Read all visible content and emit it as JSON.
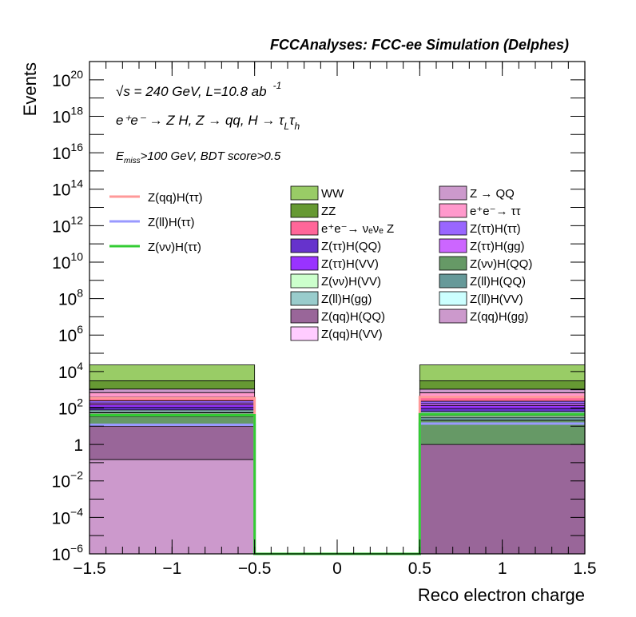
{
  "chart_data": {
    "type": "bar",
    "title": "FCCAnalyses: FCC-ee Simulation (Delphes)",
    "xlabel": "Reco electron charge",
    "ylabel": "Events",
    "xlim": [
      -1.5,
      1.5
    ],
    "ylim_log10": [
      -6,
      21
    ],
    "log_y": true,
    "grid": false,
    "x_ticks": [
      -1.5,
      -1,
      -0.5,
      0,
      0.5,
      1,
      1.5
    ],
    "x_tick_labels": [
      "−1.5",
      "−1",
      "−0.5",
      "0",
      "0.5",
      "1",
      "1.5"
    ],
    "y_tick_labels": [
      {
        "exp": -6,
        "text": "10",
        "sup": "−6"
      },
      {
        "exp": -4,
        "text": "10",
        "sup": "−4"
      },
      {
        "exp": -2,
        "text": "10",
        "sup": "−2"
      },
      {
        "exp": 0,
        "text": "1",
        "sup": ""
      },
      {
        "exp": 2,
        "text": "10",
        "sup": "2"
      },
      {
        "exp": 4,
        "text": "10",
        "sup": "4"
      },
      {
        "exp": 6,
        "text": "10",
        "sup": "6"
      },
      {
        "exp": 8,
        "text": "10",
        "sup": "8"
      },
      {
        "exp": 10,
        "text": "10",
        "sup": "10"
      },
      {
        "exp": 12,
        "text": "10",
        "sup": "12"
      },
      {
        "exp": 14,
        "text": "10",
        "sup": "14"
      },
      {
        "exp": 16,
        "text": "10",
        "sup": "16"
      },
      {
        "exp": 18,
        "text": "10",
        "sup": "18"
      },
      {
        "exp": 20,
        "text": "10",
        "sup": "20"
      }
    ],
    "annotations": {
      "line1": "√s = 240 GeV, L=10.8 ab",
      "line1_sup": "-1",
      "line2": "e⁺e⁻ → Z H, Z → qq, H → τ",
      "line2_sub1": "L",
      "line2_tau": "τ",
      "line2_sub2": "h",
      "line3": "E",
      "line3_sub": "miss",
      "line3_rest": ">100 GeV, BDT score>0.5"
    },
    "bins": [
      [
        -1.5,
        -0.5
      ],
      [
        0.5,
        1.5
      ]
    ],
    "stack": [
      {
        "name": "Z(qq)H(gg)",
        "color": "#cc99cc",
        "values": [
          0.15,
          0.0
        ]
      },
      {
        "name": "Z(qq)H(QQ)",
        "color": "#996699",
        "values": [
          10.0,
          1.0
        ]
      },
      {
        "name": "Z(νν)H(QQ)",
        "color": "#669966",
        "values": [
          25.0,
          20.0
        ]
      },
      {
        "name": "Z(ll)H(QQ)",
        "color": "#669999",
        "values": [
          10.0,
          10.0
        ]
      },
      {
        "name": "Z(νν)H(VV)",
        "color": "#ccffcc",
        "values": [
          8.0,
          8.0
        ]
      },
      {
        "name": "Z(ll)H(VV)",
        "color": "#ccffff",
        "values": [
          5.0,
          5.0
        ]
      },
      {
        "name": "Z(ll)H(gg)",
        "color": "#99cccc",
        "values": [
          20.0,
          20.0
        ]
      },
      {
        "name": "Z(ττ)H(QQ)",
        "color": "#6633cc",
        "values": [
          30.0,
          30.0
        ]
      },
      {
        "name": "Z(ττ)H(VV)",
        "color": "#9933ff",
        "values": [
          40.0,
          40.0
        ]
      },
      {
        "name": "Z(ττ)H(gg)",
        "color": "#cc66ff",
        "values": [
          40.0,
          40.0
        ]
      },
      {
        "name": "Z(ττ)H(ττ)",
        "color": "#9966ff",
        "values": [
          60.0,
          60.0
        ]
      },
      {
        "name": "e⁺e⁻→ νₑνₑ Z",
        "color": "#ff6699",
        "values": [
          150.0,
          150.0
        ]
      },
      {
        "name": "e⁺e⁻→ ττ",
        "color": "#ff99cc",
        "values": [
          300.0,
          300.0
        ]
      },
      {
        "name": "Z → QQ",
        "color": "#cc99cc",
        "values": [
          400.0,
          400.0
        ]
      },
      {
        "name": "ZZ",
        "color": "#669933",
        "values": [
          2000.0,
          2000.0
        ]
      },
      {
        "name": "WW",
        "color": "#99cc66",
        "values": [
          20000.0,
          20000.0
        ]
      }
    ],
    "signals": [
      {
        "name": "Z(qq)H(ττ)",
        "color": "#ff9999",
        "values": [
          350.0,
          400.0
        ]
      },
      {
        "name": "Z(ll)H(ττ)",
        "color": "#9999ff",
        "values": [
          12.0,
          14.0
        ]
      },
      {
        "name": "Z(νν)H(ττ)",
        "color": "#33cc33",
        "values": [
          40.0,
          45.0
        ]
      }
    ],
    "legend_signals": [
      "Z(qq)H(ττ)",
      "Z(ll)H(ττ)",
      "Z(νν)H(ττ)"
    ],
    "legend_bkg_col1": [
      {
        "label": "WW",
        "color": "#99cc66"
      },
      {
        "label": "ZZ",
        "color": "#669933"
      },
      {
        "label": "e⁺e⁻→ νₑνₑ Z",
        "color": "#ff6699"
      },
      {
        "label": "Z(ττ)H(QQ)",
        "color": "#6633cc"
      },
      {
        "label": "Z(ττ)H(VV)",
        "color": "#9933ff"
      },
      {
        "label": "Z(νν)H(VV)",
        "color": "#ccffcc"
      },
      {
        "label": "Z(ll)H(gg)",
        "color": "#99cccc"
      },
      {
        "label": "Z(qq)H(QQ)",
        "color": "#996699"
      },
      {
        "label": "Z(qq)H(VV)",
        "color": "#ffccff"
      }
    ],
    "legend_bkg_col2": [
      {
        "label": "Z → QQ",
        "color": "#cc99cc"
      },
      {
        "label": "e⁺e⁻→ ττ",
        "color": "#ff99cc"
      },
      {
        "label": "Z(ττ)H(ττ)",
        "color": "#9966ff"
      },
      {
        "label": "Z(ττ)H(gg)",
        "color": "#cc66ff"
      },
      {
        "label": "Z(νν)H(QQ)",
        "color": "#669966"
      },
      {
        "label": "Z(ll)H(QQ)",
        "color": "#669999"
      },
      {
        "label": "Z(ll)H(VV)",
        "color": "#ccffff"
      },
      {
        "label": "Z(qq)H(gg)",
        "color": "#cc99cc"
      }
    ]
  }
}
